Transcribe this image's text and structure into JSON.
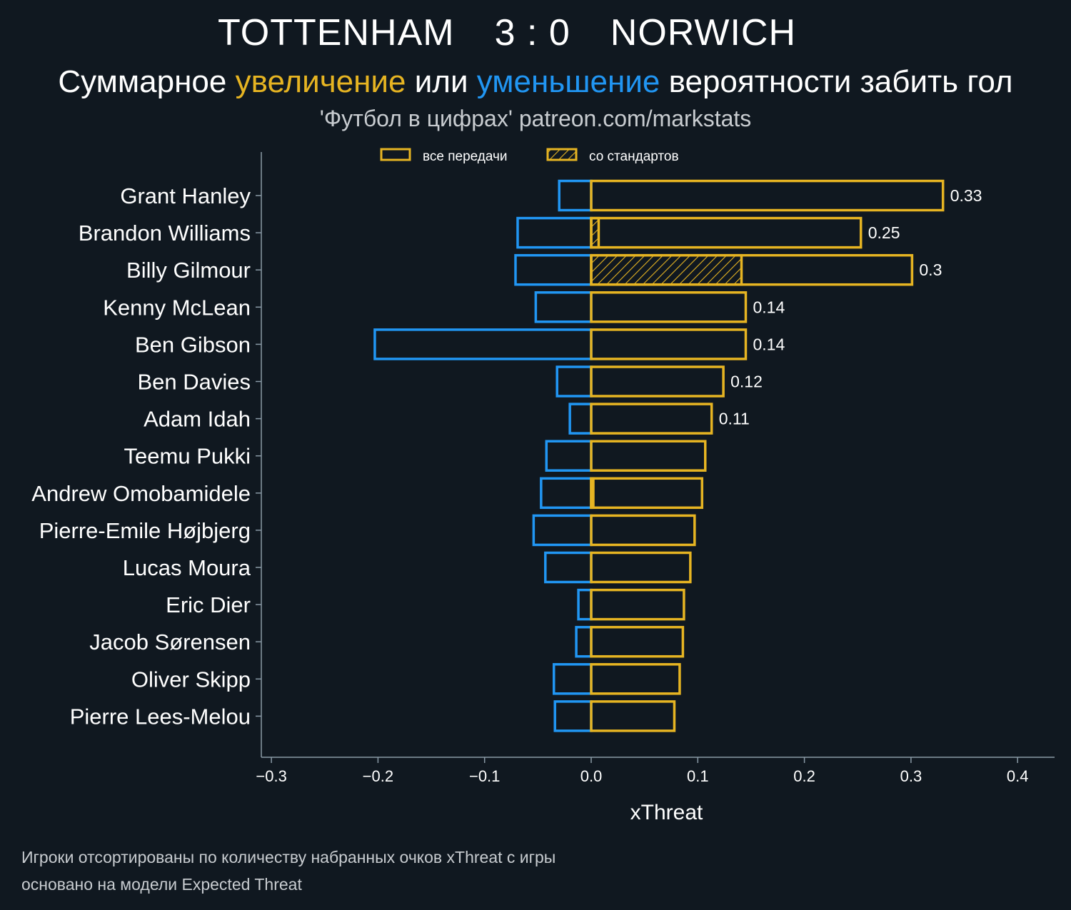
{
  "header": {
    "home_team": "TOTTENHAM",
    "score": "3 : 0",
    "away_team": "NORWICH"
  },
  "subtitle": {
    "part1": "Суммарное",
    "increase": "увеличение",
    "part2": "или",
    "decrease": "уменьшение",
    "part3": "вероятности забить гол"
  },
  "credit": "'Футбол в цифрах' patreon.com/markstats",
  "footnote": {
    "line1": "Игроки отсортированы по количеству набранных очков xThreat с игры",
    "line2": "основано на модели Expected Threat"
  },
  "colors": {
    "background": "#101820",
    "increase": "#e6b422",
    "decrease": "#2196f3",
    "axis": "#8a9aa6",
    "text": "#ffffff"
  },
  "chart_data": {
    "type": "bar",
    "orientation": "horizontal",
    "xlabel": "xThreat",
    "xlim": [
      -0.31,
      0.435
    ],
    "xticks": [
      -0.3,
      -0.2,
      -0.1,
      0.0,
      0.1,
      0.2,
      0.3,
      0.4
    ],
    "xtick_labels": [
      "−0.3",
      "−0.2",
      "−0.1",
      "0.0",
      "0.1",
      "0.2",
      "0.3",
      "0.4"
    ],
    "legend": {
      "placement": "top-center",
      "entries": [
        "все передачи",
        "со стандартов"
      ]
    },
    "categories": [
      "Grant Hanley",
      "Brandon Williams",
      "Billy Gilmour",
      "Kenny McLean",
      "Ben Gibson",
      "Ben Davies",
      "Adam Idah",
      "Teemu Pukki",
      "Andrew Omobamidele",
      "Pierre-Emile Højbjerg",
      "Lucas Moura",
      "Eric Dier",
      "Jacob Sørensen",
      "Oliver Skipp",
      "Pierre Lees-Melou"
    ],
    "series": [
      {
        "name": "все передачи",
        "positive": [
          0.33,
          0.253,
          0.301,
          0.145,
          0.145,
          0.124,
          0.113,
          0.107,
          0.104,
          0.097,
          0.093,
          0.087,
          0.086,
          0.083,
          0.078
        ],
        "negative": [
          -0.03,
          -0.069,
          -0.071,
          -0.052,
          -0.203,
          -0.032,
          -0.02,
          -0.042,
          -0.047,
          -0.054,
          -0.043,
          -0.012,
          -0.014,
          -0.035,
          -0.034
        ]
      },
      {
        "name": "со стандартов",
        "positive": [
          0,
          0.007,
          0.141,
          0,
          0,
          0,
          0,
          0,
          0.002,
          0,
          0,
          0,
          0,
          0,
          0
        ]
      }
    ],
    "data_labels": [
      "0.33",
      "0.25",
      "0.3",
      "0.14",
      "0.14",
      "0.12",
      "0.11",
      "",
      "",
      "",
      "",
      "",
      "",
      "",
      ""
    ]
  }
}
